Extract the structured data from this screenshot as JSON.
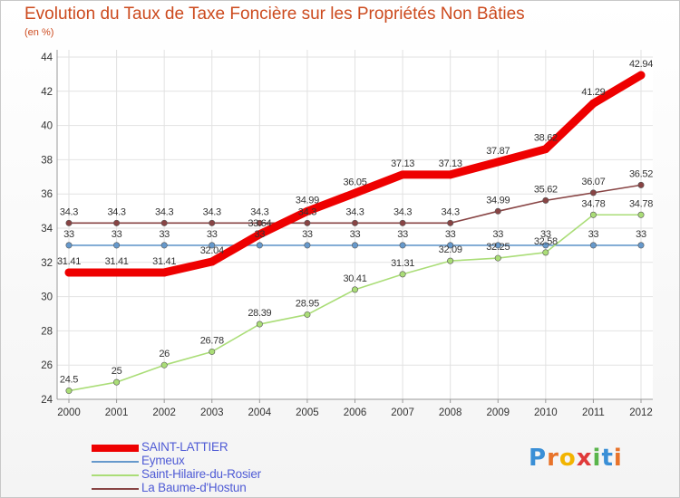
{
  "chart_data": {
    "type": "line",
    "title": "Evolution du Taux de Taxe Foncière sur les Propriétés Non Bâties",
    "subtitle": "(en %)",
    "x": [
      "2000",
      "2001",
      "2002",
      "2003",
      "2004",
      "2005",
      "2006",
      "2007",
      "2008",
      "2009",
      "2010",
      "2011",
      "2012"
    ],
    "ylim": [
      24,
      44
    ],
    "yticks": [
      24,
      26,
      28,
      30,
      32,
      34,
      36,
      38,
      40,
      42,
      44
    ],
    "grid": true,
    "legend_position": "bottom-left",
    "series": [
      {
        "name": "SAINT-LATTIER",
        "color": "#ee0000",
        "values": [
          31.41,
          31.41,
          31.41,
          32.04,
          33.64,
          34.99,
          36.05,
          37.13,
          37.13,
          37.87,
          38.62,
          41.29,
          42.94
        ],
        "labels": [
          "31.41",
          "31.41",
          "31.41",
          "32.04",
          "33.64",
          "34.99",
          "36.05",
          "37.13",
          "37.13",
          "37.87",
          "38.62",
          "41.29",
          "42.94"
        ]
      },
      {
        "name": "Eymeux",
        "color": "#6699cc",
        "values": [
          33,
          33,
          33,
          33,
          33,
          33,
          33,
          33,
          33,
          33,
          33,
          33,
          33
        ],
        "labels": [
          "33",
          "33",
          "33",
          "33",
          "33",
          "33",
          "33",
          "33",
          "33",
          "33",
          "33",
          "33",
          "33"
        ]
      },
      {
        "name": "Saint-Hilaire-du-Rosier",
        "color": "#aadd77",
        "values": [
          24.5,
          25,
          26,
          26.78,
          28.39,
          28.95,
          30.41,
          31.31,
          32.09,
          32.25,
          32.58,
          34.78,
          34.78
        ],
        "labels": [
          "24.5",
          "25",
          "26",
          "26.78",
          "28.39",
          "28.95",
          "30.41",
          "31.31",
          "32.09",
          "32.25",
          "32.58",
          "34.78",
          "34.78"
        ]
      },
      {
        "name": "La Baume-d'Hostun",
        "color": "#884444",
        "values": [
          34.3,
          34.3,
          34.3,
          34.3,
          34.3,
          34.3,
          34.3,
          34.3,
          34.3,
          34.99,
          35.62,
          36.07,
          36.52
        ],
        "labels": [
          "34.3",
          "34.3",
          "34.3",
          "34.3",
          "34.3",
          "34.3",
          "34.3",
          "34.3",
          "34.3",
          "34.99",
          "35.62",
          "36.07",
          "36.52"
        ]
      }
    ]
  },
  "logo": {
    "letters": [
      "P",
      "r",
      "o",
      "x",
      "i",
      "t",
      "i"
    ],
    "colors": [
      "#3a8fd6",
      "#e8732a",
      "#f2b400",
      "#e03a3a",
      "#5ab54b",
      "#3a8fd6",
      "#e8732a"
    ]
  }
}
